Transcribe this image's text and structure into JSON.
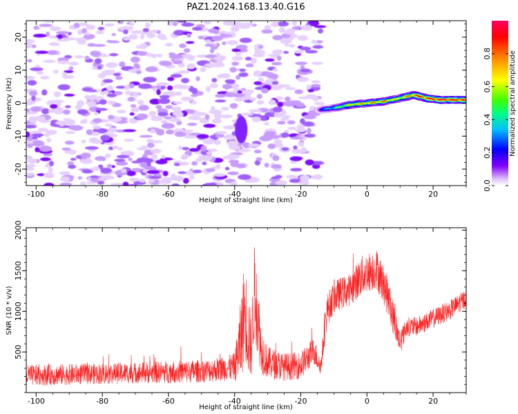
{
  "title": "PAZ1.2024.168.13.40.G16",
  "chart_data": [
    {
      "type": "heatmap",
      "xlabel": "Height of straight line (km)",
      "ylabel": "Frequency (Hz)",
      "xlim": [
        -103,
        30
      ],
      "ylim": [
        -25,
        25
      ],
      "x_ticks": [
        -100,
        -80,
        -60,
        -40,
        -20,
        0,
        20
      ],
      "y_ticks": [
        -20,
        -10,
        0,
        10,
        20
      ],
      "colorbar": {
        "label": "Normalized spectral amplitude",
        "range": [
          0,
          1
        ],
        "ticks": [
          0.0,
          0.2,
          0.4,
          0.6,
          0.8
        ],
        "colormap": [
          "#ffffff",
          "#d9b3ff",
          "#8000ff",
          "#0000ff",
          "#00c0ff",
          "#00ff80",
          "#80ff00",
          "#ffff00",
          "#ff8000",
          "#ff0000",
          "#ff0060"
        ]
      },
      "noise_region": {
        "x_range": [
          -103,
          -14
        ],
        "y_range": [
          -25,
          25
        ],
        "amplitude_range": [
          0.0,
          0.15
        ]
      },
      "signal_ridge": {
        "x": [
          -14,
          -10,
          -5,
          0,
          5,
          10,
          14,
          18,
          22,
          30
        ],
        "y": [
          -2,
          -1.5,
          -0.5,
          0,
          0.5,
          1.5,
          2.5,
          1.5,
          1.0,
          1.0
        ],
        "amplitude": [
          0.35,
          0.5,
          0.75,
          0.8,
          0.85,
          0.7,
          0.9,
          0.95,
          1.0,
          1.0
        ]
      }
    },
    {
      "type": "line",
      "xlabel": "Height of straight line (km)",
      "ylabel": "SNR (10 * v/v)",
      "xlim": [
        -103,
        30
      ],
      "ylim": [
        0,
        2030
      ],
      "x_ticks": [
        -100,
        -80,
        -60,
        -40,
        -20,
        0,
        20
      ],
      "y_ticks": [
        500,
        1000,
        1500,
        2000
      ],
      "series": [
        {
          "color": "#ff2020",
          "x": [
            -103,
            -90,
            -80,
            -70,
            -60,
            -50,
            -45,
            -40,
            -38,
            -37,
            -36,
            -35,
            -34,
            -33,
            -32,
            -30,
            -25,
            -20,
            -16,
            -14,
            -12,
            -10,
            -8,
            -5,
            -2,
            0,
            3,
            6,
            8,
            10,
            12,
            15,
            20,
            25,
            30
          ],
          "y": [
            200,
            210,
            220,
            230,
            240,
            250,
            270,
            300,
            600,
            1000,
            700,
            500,
            1200,
            900,
            500,
            350,
            300,
            320,
            500,
            300,
            1000,
            1150,
            1200,
            1250,
            1400,
            1450,
            1500,
            1200,
            900,
            600,
            800,
            800,
            900,
            1000,
            1150
          ],
          "noise_amplitude": [
            130,
            130,
            130,
            130,
            140,
            140,
            150,
            170,
            550,
            600,
            550,
            400,
            600,
            500,
            300,
            200,
            170,
            170,
            170,
            120,
            200,
            200,
            200,
            200,
            250,
            250,
            250,
            250,
            220,
            150,
            120,
            120,
            120,
            120,
            120
          ]
        }
      ]
    }
  ]
}
